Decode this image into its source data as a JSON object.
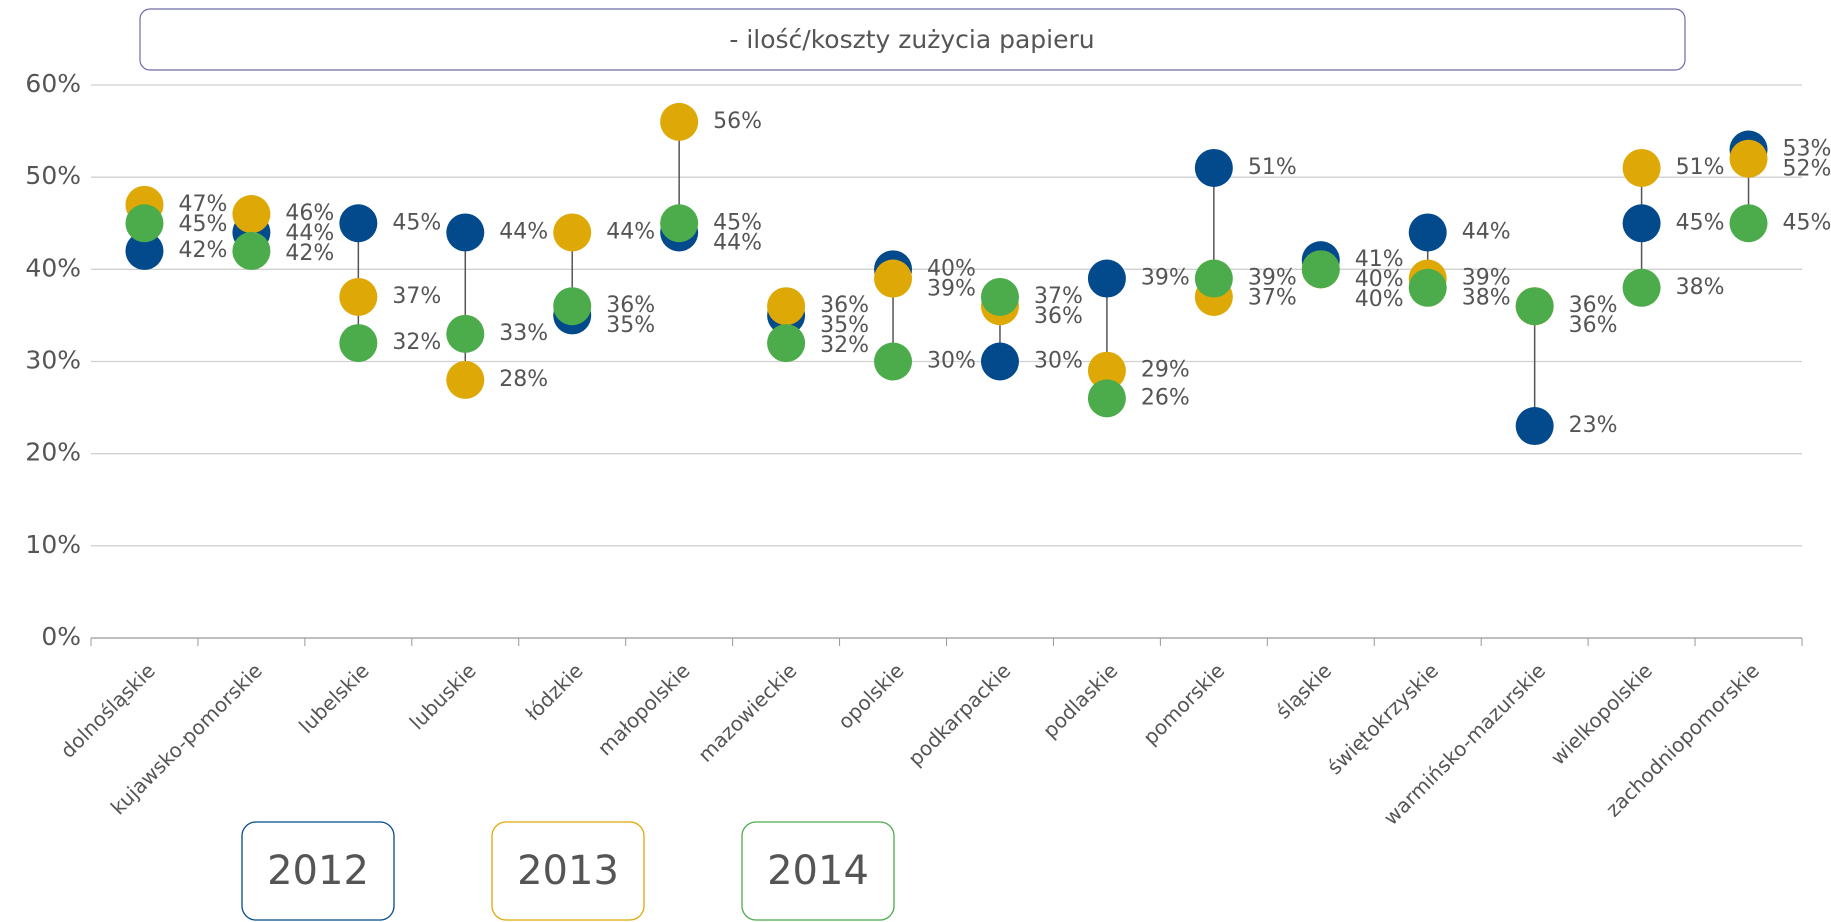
{
  "chart_data": {
    "type": "dot",
    "title": "- ilość/koszty zużycia papieru",
    "categories": [
      "dolnośląskie",
      "kujawsko-pomorskie",
      "lubelskie",
      "lubuskie",
      "łódzkie",
      "małopolskie",
      "mazowieckie",
      "opolskie",
      "podkarpackie",
      "podlaskie",
      "pomorskie",
      "śląskie",
      "świętokrzyskie",
      "warmińsko-mazurskie",
      "wielkopolskie",
      "zachodniopomorskie"
    ],
    "series": [
      {
        "name": "2012",
        "color": "#034a8c",
        "values": [
          42,
          44,
          45,
          44,
          35,
          44,
          35,
          40,
          30,
          39,
          51,
          41,
          44,
          23,
          45,
          53
        ],
        "value_labels": [
          "42%",
          "44%",
          "45%",
          "44%",
          "35%",
          "44%",
          "35%",
          "40%",
          "30%",
          "39%",
          "51%",
          "41%",
          "44%",
          "23%",
          "45%",
          "53%"
        ]
      },
      {
        "name": "2013",
        "color": "#dea806",
        "values": [
          47,
          46,
          37,
          28,
          44,
          56,
          36,
          39,
          36,
          29,
          37,
          40,
          39,
          36,
          51,
          52
        ],
        "value_labels": [
          "47%",
          "46%",
          "37%",
          "28%",
          "44%",
          "56%",
          "36%",
          "39%",
          "36%",
          "29%",
          "37%",
          "40%",
          "39%",
          "36%",
          "51%",
          "52%"
        ]
      },
      {
        "name": "2014",
        "color": "#4cab4a",
        "values": [
          45,
          42,
          32,
          33,
          36,
          45,
          32,
          30,
          37,
          26,
          39,
          40,
          38,
          36,
          38,
          45
        ],
        "value_labels": [
          "45%",
          "42%",
          "32%",
          "33%",
          "36%",
          "45%",
          "32%",
          "30%",
          "37%",
          "26%",
          "39%",
          "40%",
          "38%",
          "36%",
          "38%",
          "45%"
        ]
      }
    ],
    "ylim": [
      0,
      60
    ],
    "yticks": [
      {
        "value": 0,
        "label": "0%"
      },
      {
        "value": 10,
        "label": "10%"
      },
      {
        "value": 20,
        "label": "20%"
      },
      {
        "value": 30,
        "label": "30%"
      },
      {
        "value": 40,
        "label": "40%"
      },
      {
        "value": 50,
        "label": "50%"
      },
      {
        "value": 60,
        "label": "60%"
      }
    ],
    "grid": true
  }
}
